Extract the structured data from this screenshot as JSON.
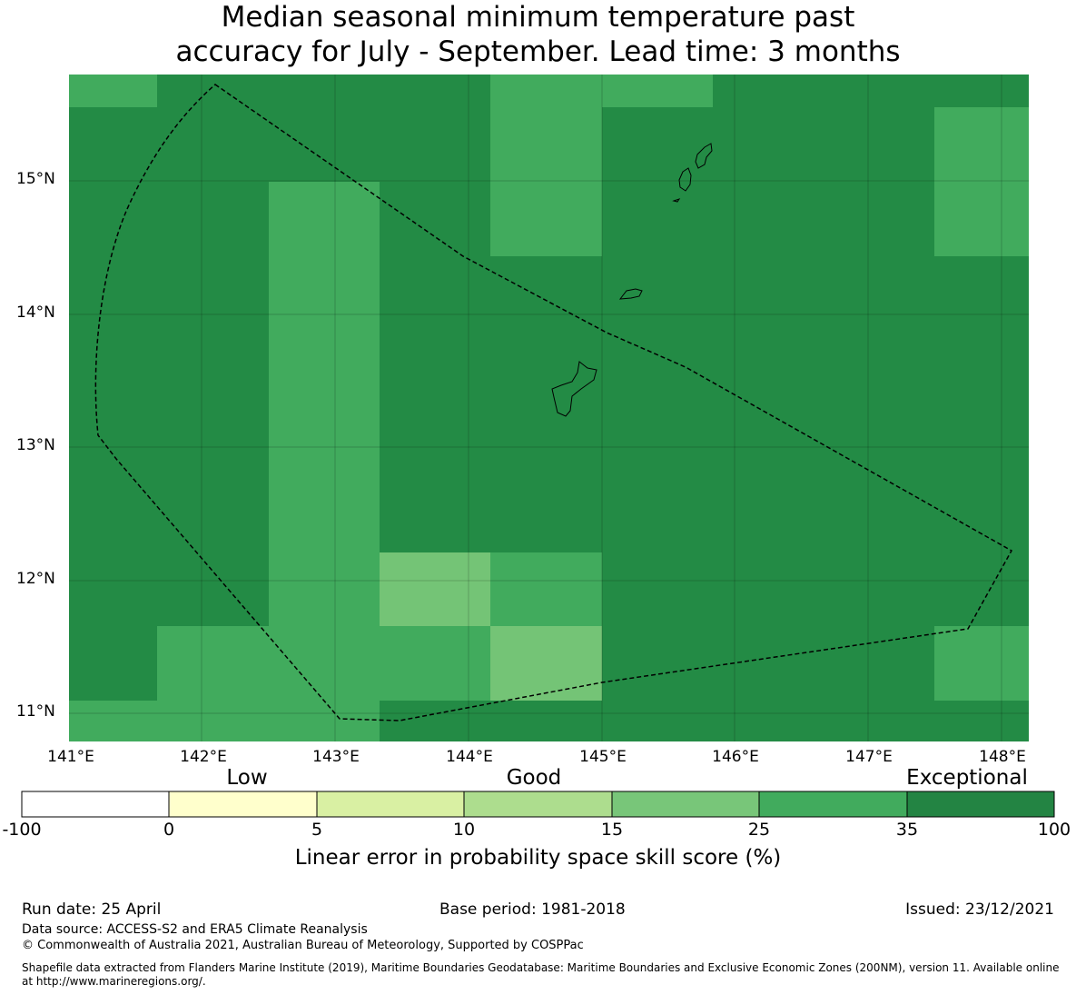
{
  "title": {
    "line1": "Median seasonal minimum temperature past",
    "line2": "accuracy for July - September. Lead time: 3 months"
  },
  "map": {
    "latitude_labels": [
      "15°N",
      "14°N",
      "13°N",
      "12°N",
      "11°N"
    ],
    "longitude_labels": [
      "141°E",
      "142°E",
      "143°E",
      "144°E",
      "145°E",
      "146°E",
      "147°E",
      "148°E"
    ],
    "colors": {
      "exceptional": "#238b45",
      "class_25_35": "#41ab5d",
      "class_15_25": "#74c476",
      "outline": "#000000"
    }
  },
  "colorbar": {
    "category_labels": [
      "Low",
      "Good",
      "Exceptional"
    ],
    "ticks": [
      "-100",
      "0",
      "5",
      "10",
      "15",
      "25",
      "35",
      "100"
    ],
    "segment_colors": [
      "#ffffff",
      "#ffffcc",
      "#d9f0a3",
      "#addd8e",
      "#78c679",
      "#41ab5d",
      "#238443"
    ],
    "label": "Linear error in probability space skill score (%)"
  },
  "footer": {
    "run_date": "Run date: 25 April",
    "base_period": "Base period: 1981-2018",
    "issued": "Issued: 23/12/2021",
    "data_source": "Data source: ACCESS-S2 and ERA5 Climate Reanalysis",
    "copyright": "© Commonwealth of Australia 2021, Australian Bureau of Meteorology, Supported by COSPPac",
    "shapefile_note": "Shapefile data extracted from Flanders Marine Institute (2019), Maritime Boundaries Geodatabase: Maritime Boundaries and Exclusive Economic Zones (200NM), version 11. Available online at http://www.marineregions.org/."
  }
}
